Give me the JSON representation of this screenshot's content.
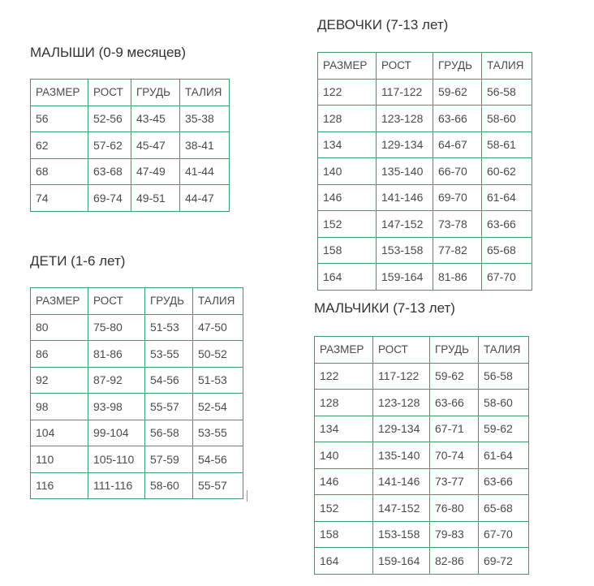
{
  "tables": [
    {
      "id": "babies",
      "title": "МАЛЫШИ (0-9 месяцев)",
      "headers": [
        "РАЗМЕР",
        "РОСТ",
        "ГРУДЬ",
        "ТАЛИЯ"
      ],
      "rows": [
        [
          "56",
          "52-56",
          "43-45",
          "35-38"
        ],
        [
          "62",
          "57-62",
          "45-47",
          "38-41"
        ],
        [
          "68",
          "63-68",
          "47-49",
          "41-44"
        ],
        [
          "74",
          "69-74",
          "49-51",
          "44-47"
        ]
      ]
    },
    {
      "id": "kids",
      "title": "ДЕТИ (1-6 лет)",
      "headers": [
        "РАЗМЕР",
        "РОСТ",
        "ГРУДЬ",
        "ТАЛИЯ"
      ],
      "rows": [
        [
          "80",
          "75-80",
          "51-53",
          "47-50"
        ],
        [
          "86",
          "81-86",
          "53-55",
          "50-52"
        ],
        [
          "92",
          "87-92",
          "54-56",
          "51-53"
        ],
        [
          "98",
          "93-98",
          "55-57",
          "52-54"
        ],
        [
          "104",
          "99-104",
          "56-58",
          "53-55"
        ],
        [
          "110",
          "105-110",
          "57-59",
          "54-56"
        ],
        [
          "116",
          "111-116",
          "58-60",
          "55-57"
        ]
      ]
    },
    {
      "id": "girls",
      "title": "ДЕВОЧКИ (7-13 лет)",
      "headers": [
        "РАЗМЕР",
        "РОСТ",
        "ГРУДЬ",
        "ТАЛИЯ"
      ],
      "rows": [
        [
          "122",
          "117-122",
          "59-62",
          "56-58"
        ],
        [
          "128",
          "123-128",
          "63-66",
          "58-60"
        ],
        [
          "134",
          "129-134",
          "64-67",
          "58-61"
        ],
        [
          "140",
          "135-140",
          "66-70",
          "60-62"
        ],
        [
          "146",
          "141-146",
          "69-70",
          "61-64"
        ],
        [
          "152",
          "147-152",
          "73-78",
          "63-66"
        ],
        [
          "158",
          "153-158",
          "77-82",
          "65-68"
        ],
        [
          "164",
          "159-164",
          "81-86",
          "67-70"
        ]
      ]
    },
    {
      "id": "boys",
      "title": "МАЛЬЧИКИ (7-13 лет)",
      "headers": [
        "РАЗМЕР",
        "РОСТ",
        "ГРУДЬ",
        "ТАЛИЯ"
      ],
      "rows": [
        [
          "122",
          "117-122",
          "59-62",
          "56-58"
        ],
        [
          "128",
          "123-128",
          "63-66",
          "58-60"
        ],
        [
          "134",
          "129-134",
          "67-71",
          "59-62"
        ],
        [
          "140",
          "135-140",
          "70-74",
          "61-64"
        ],
        [
          "146",
          "141-146",
          "73-77",
          "63-66"
        ],
        [
          "152",
          "147-152",
          "76-80",
          "65-68"
        ],
        [
          "158",
          "153-158",
          "79-83",
          "67-70"
        ],
        [
          "164",
          "159-164",
          "82-86",
          "69-72"
        ]
      ]
    }
  ],
  "colors": {
    "border": "#3f9a6c",
    "text": "#4a4a4a"
  }
}
